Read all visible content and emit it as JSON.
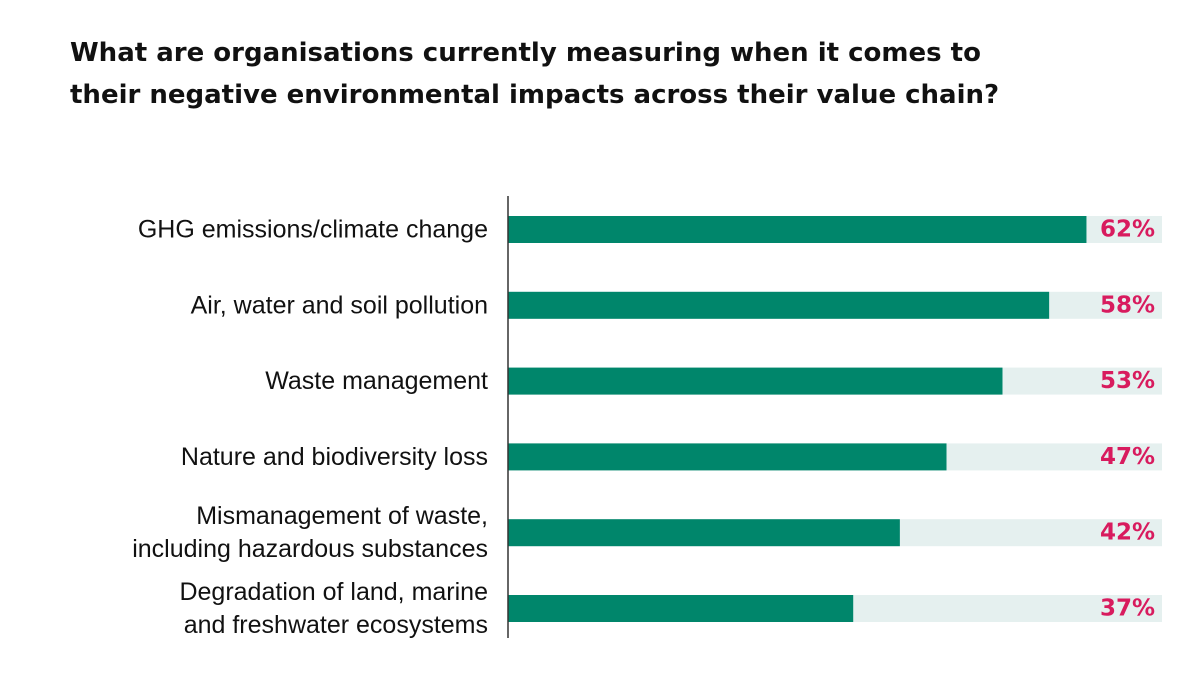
{
  "chart_data": {
    "type": "bar",
    "orientation": "horizontal",
    "title": "What are organisations currently measuring when it comes to\ntheir negative environmental impacts across their value chain?",
    "categories": [
      [
        "GHG emissions/climate change"
      ],
      [
        "Air, water and soil pollution"
      ],
      [
        "Waste management"
      ],
      [
        "Nature and biodiversity loss"
      ],
      [
        "Mismanagement of waste,",
        "including hazardous substances"
      ],
      [
        "Degradation of land, marine",
        "and freshwater ecosystems"
      ]
    ],
    "values": [
      62,
      58,
      53,
      47,
      42,
      37
    ],
    "value_labels": [
      "62%",
      "58%",
      "53%",
      "47%",
      "42%",
      "37%"
    ],
    "xlim": [
      0,
      70
    ],
    "grid": false,
    "colors": {
      "bar": "#00866b",
      "track": "#e5f0ef",
      "value_text": "#d81b5e",
      "axis": "#333333"
    }
  }
}
